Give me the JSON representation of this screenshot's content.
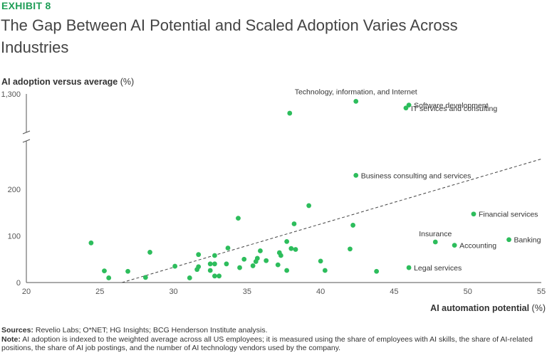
{
  "exhibit": "EXHIBIT 8",
  "title": "The Gap Between AI Potential and Scaled Adoption Varies Across Industries",
  "notes": {
    "sources_label": "Sources:",
    "sources_text": "Revelio Labs; O*NET; HG Insights; BCG Henderson Institute analysis.",
    "note_label": "Note:",
    "note_text": "AI adoption is indexed to the weighted average across all US employees; it is measured using the share of employees with AI skills, the share of AI-related positions, the share of AI job postings, and the number of AI technology vendors used by the company."
  },
  "colors": {
    "accent": "#1f9e57",
    "point": "#2dbd5c",
    "axis": "#555555",
    "trend": "#444444"
  },
  "chart_data": {
    "type": "scatter",
    "xlabel": "AI automation potential",
    "xlabel_unit": "(%)",
    "ylabel": "AI adoption versus average",
    "ylabel_unit": "(%)",
    "xlim": [
      20,
      55
    ],
    "x_ticks": [
      "20",
      "25",
      "30",
      "35",
      "40",
      "45",
      "50",
      "55"
    ],
    "y_ticks": [
      "0",
      "100",
      "200",
      "1,300"
    ],
    "y_axis_break": true,
    "trendline": {
      "style": "dashed",
      "from": [
        26.5,
        0
      ],
      "to": [
        55,
        265
      ]
    },
    "points": [
      {
        "x": 42.4,
        "y": 1100,
        "label": "Technology, information, and Internet"
      },
      {
        "x": 46.0,
        "y": 1000,
        "label": "Software development"
      },
      {
        "x": 45.8,
        "y": 920,
        "label": "IT services and consulting"
      },
      {
        "x": 37.9,
        "y": 780,
        "label": ""
      },
      {
        "x": 42.4,
        "y": 230,
        "label": "Business consulting and services"
      },
      {
        "x": 39.2,
        "y": 165,
        "label": ""
      },
      {
        "x": 50.4,
        "y": 147,
        "label": "Financial services"
      },
      {
        "x": 34.4,
        "y": 138,
        "label": ""
      },
      {
        "x": 38.2,
        "y": 126,
        "label": ""
      },
      {
        "x": 42.2,
        "y": 123,
        "label": ""
      },
      {
        "x": 52.8,
        "y": 92,
        "label": "Banking"
      },
      {
        "x": 47.8,
        "y": 87,
        "label": "Insurance"
      },
      {
        "x": 49.1,
        "y": 80,
        "label": "Accounting"
      },
      {
        "x": 46.0,
        "y": 32,
        "label": "Legal services"
      },
      {
        "x": 24.4,
        "y": 85,
        "label": ""
      },
      {
        "x": 28.4,
        "y": 65,
        "label": ""
      },
      {
        "x": 25.3,
        "y": 25,
        "label": ""
      },
      {
        "x": 25.6,
        "y": 10,
        "label": ""
      },
      {
        "x": 26.9,
        "y": 24,
        "label": ""
      },
      {
        "x": 28.1,
        "y": 11,
        "label": ""
      },
      {
        "x": 30.1,
        "y": 35,
        "label": ""
      },
      {
        "x": 31.1,
        "y": 10,
        "label": ""
      },
      {
        "x": 31.7,
        "y": 60,
        "label": ""
      },
      {
        "x": 31.7,
        "y": 34,
        "label": ""
      },
      {
        "x": 31.6,
        "y": 28,
        "label": ""
      },
      {
        "x": 32.5,
        "y": 40,
        "label": ""
      },
      {
        "x": 32.5,
        "y": 26,
        "label": ""
      },
      {
        "x": 32.8,
        "y": 58,
        "label": ""
      },
      {
        "x": 32.8,
        "y": 40,
        "label": ""
      },
      {
        "x": 32.8,
        "y": 14,
        "label": ""
      },
      {
        "x": 33.1,
        "y": 14,
        "label": ""
      },
      {
        "x": 33.7,
        "y": 74,
        "label": ""
      },
      {
        "x": 33.6,
        "y": 40,
        "label": ""
      },
      {
        "x": 34.5,
        "y": 32,
        "label": ""
      },
      {
        "x": 34.8,
        "y": 50,
        "label": ""
      },
      {
        "x": 35.4,
        "y": 36,
        "label": ""
      },
      {
        "x": 35.7,
        "y": 52,
        "label": ""
      },
      {
        "x": 35.9,
        "y": 68,
        "label": ""
      },
      {
        "x": 35.6,
        "y": 45,
        "label": ""
      },
      {
        "x": 36.3,
        "y": 47,
        "label": ""
      },
      {
        "x": 37.1,
        "y": 38,
        "label": ""
      },
      {
        "x": 37.2,
        "y": 64,
        "label": ""
      },
      {
        "x": 37.3,
        "y": 58,
        "label": ""
      },
      {
        "x": 37.7,
        "y": 88,
        "label": ""
      },
      {
        "x": 37.7,
        "y": 26,
        "label": ""
      },
      {
        "x": 38.0,
        "y": 73,
        "label": ""
      },
      {
        "x": 38.3,
        "y": 71,
        "label": ""
      },
      {
        "x": 40.0,
        "y": 46,
        "label": ""
      },
      {
        "x": 40.3,
        "y": 26,
        "label": ""
      },
      {
        "x": 42.0,
        "y": 72,
        "label": ""
      },
      {
        "x": 43.8,
        "y": 24,
        "label": ""
      }
    ]
  }
}
